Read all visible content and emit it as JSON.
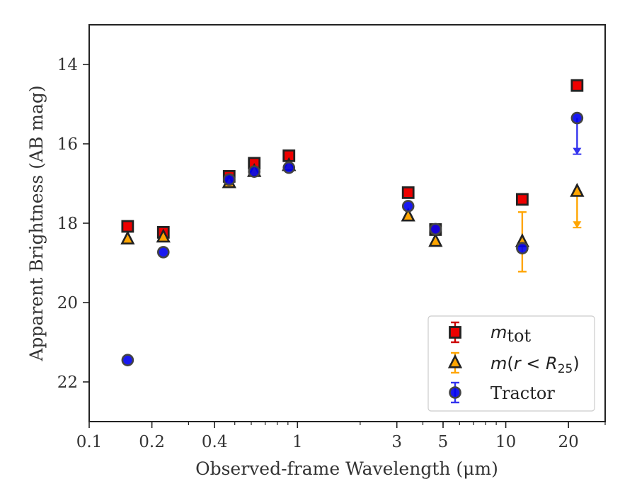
{
  "chart_data": {
    "type": "scatter",
    "xlabel": "Observed-frame Wavelength (μm)",
    "ylabel": "Apparent Brightness (AB mag)",
    "xscale": "log",
    "xlim": [
      0.1,
      30
    ],
    "ylim": [
      23,
      13
    ],
    "y_inverted": true,
    "x_ticks": [
      {
        "value": 0.1,
        "label": "0.1"
      },
      {
        "value": 0.2,
        "label": "0.2"
      },
      {
        "value": 0.4,
        "label": "0.4"
      },
      {
        "value": 1,
        "label": "1"
      },
      {
        "value": 3,
        "label": "3"
      },
      {
        "value": 5,
        "label": "5"
      },
      {
        "value": 10,
        "label": "10"
      },
      {
        "value": 20,
        "label": "20"
      }
    ],
    "y_ticks": [
      {
        "value": 14,
        "label": "14"
      },
      {
        "value": 16,
        "label": "16"
      },
      {
        "value": 18,
        "label": "18"
      },
      {
        "value": 20,
        "label": "20"
      },
      {
        "value": 22,
        "label": "22"
      }
    ],
    "grid": false,
    "legend_position": "lower-right",
    "series": [
      {
        "name": "m_tot",
        "legend_label": {
          "italic": "m",
          "sub": "tot",
          "suffix": ""
        },
        "marker": "square",
        "color": "#ee0000",
        "edge": "#222222",
        "errcolor": "#cc0000",
        "points": [
          {
            "x": 0.153,
            "y": 18.08
          },
          {
            "x": 0.227,
            "y": 18.23
          },
          {
            "x": 0.47,
            "y": 16.82
          },
          {
            "x": 0.62,
            "y": 16.49
          },
          {
            "x": 0.91,
            "y": 16.3
          },
          {
            "x": 3.4,
            "y": 17.23
          },
          {
            "x": 4.6,
            "y": 18.16
          },
          {
            "x": 12.0,
            "y": 17.4
          },
          {
            "x": 22.0,
            "y": 14.53
          }
        ]
      },
      {
        "name": "m(r < R25)",
        "legend_label": {
          "italic": "m",
          "sub": "25",
          "prefix": "(r < R",
          "suffix": ")"
        },
        "marker": "triangle",
        "color": "#ffa500",
        "edge": "#222222",
        "errcolor": "#ffa500",
        "points": [
          {
            "x": 0.153,
            "y": 18.4
          },
          {
            "x": 0.227,
            "y": 18.35
          },
          {
            "x": 0.47,
            "y": 16.98
          },
          {
            "x": 0.62,
            "y": 16.7
          },
          {
            "x": 0.91,
            "y": 16.55
          },
          {
            "x": 3.4,
            "y": 17.82
          },
          {
            "x": 4.6,
            "y": 18.46
          },
          {
            "x": 12.0,
            "y": 18.47,
            "err": [
              0.75,
              0.75
            ]
          },
          {
            "x": 22.0,
            "y": 17.2,
            "upper_limit": true
          }
        ]
      },
      {
        "name": "Tractor",
        "marker": "circle",
        "color": "#0000ee",
        "edge": "#444444",
        "errcolor": "#3333ee",
        "points": [
          {
            "x": 0.153,
            "y": 21.45
          },
          {
            "x": 0.227,
            "y": 18.73
          },
          {
            "x": 0.47,
            "y": 16.9
          },
          {
            "x": 0.62,
            "y": 16.7
          },
          {
            "x": 0.91,
            "y": 16.6
          },
          {
            "x": 3.4,
            "y": 17.57
          },
          {
            "x": 4.6,
            "y": 18.15
          },
          {
            "x": 12.0,
            "y": 18.63
          },
          {
            "x": 22.0,
            "y": 15.35,
            "upper_limit": true
          }
        ]
      }
    ]
  }
}
